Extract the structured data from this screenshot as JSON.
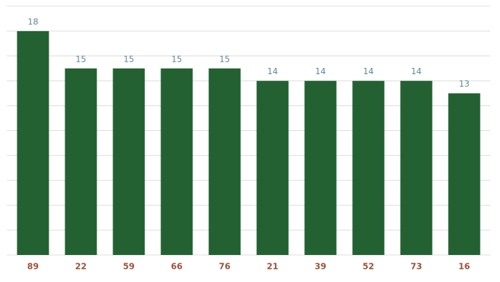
{
  "chart_data": {
    "type": "bar",
    "categories": [
      "89",
      "22",
      "59",
      "66",
      "76",
      "21",
      "39",
      "52",
      "73",
      "16"
    ],
    "values": [
      18,
      15,
      15,
      15,
      15,
      14,
      14,
      14,
      14,
      13
    ],
    "color": "#236133",
    "ylim": [
      0,
      20
    ],
    "yticks": [
      0,
      2,
      4,
      6,
      8,
      10,
      12,
      14,
      16,
      18,
      20
    ],
    "grid": true
  }
}
